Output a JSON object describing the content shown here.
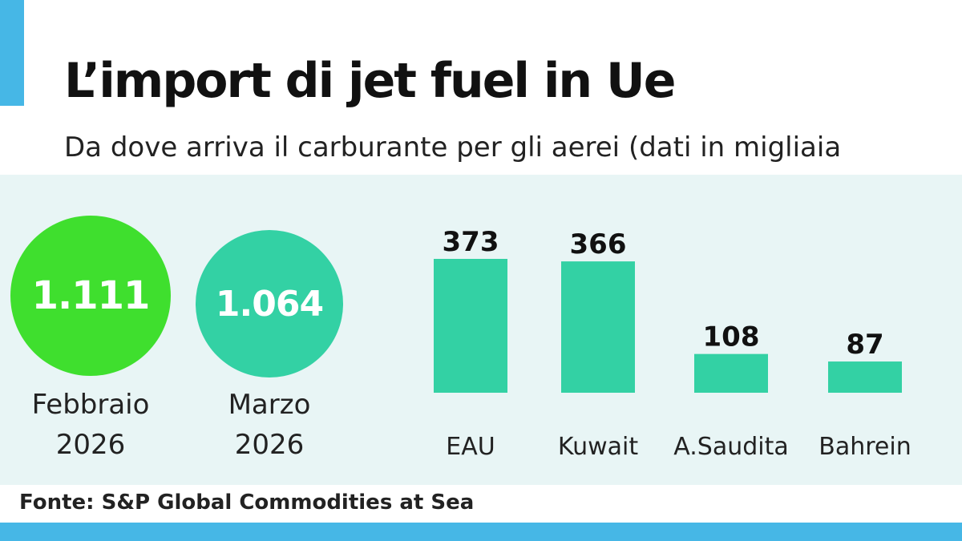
{
  "header": {
    "title": "L’import di jet fuel in Ue",
    "subtitle": "Da dove arriva il carburante per gli aerei (dati in migliaia"
  },
  "totals": [
    {
      "value": "1.111",
      "label_line1": "Febbraio",
      "label_line2": "2026",
      "color": "#3fdf2e"
    },
    {
      "value": "1.064",
      "label_line1": "Marzo",
      "label_line2": "2026",
      "color": "#33d1a4"
    }
  ],
  "chart_data": {
    "type": "bar",
    "title": "",
    "categories": [
      "EAU",
      "Kuwait",
      "A.Saudita",
      "Bahrein"
    ],
    "values": [
      373,
      366,
      108,
      87
    ],
    "data_labels": [
      "373",
      "366",
      "108",
      "87"
    ],
    "xlabel": "",
    "ylabel": "",
    "grid": false,
    "bar_color": "#33d1a4"
  },
  "footer": {
    "source": "Fonte: S&P Global Commodities at Sea"
  },
  "colors": {
    "accent": "#46b7e6",
    "panel_background": "#e8f5f5",
    "text": "#111111"
  }
}
